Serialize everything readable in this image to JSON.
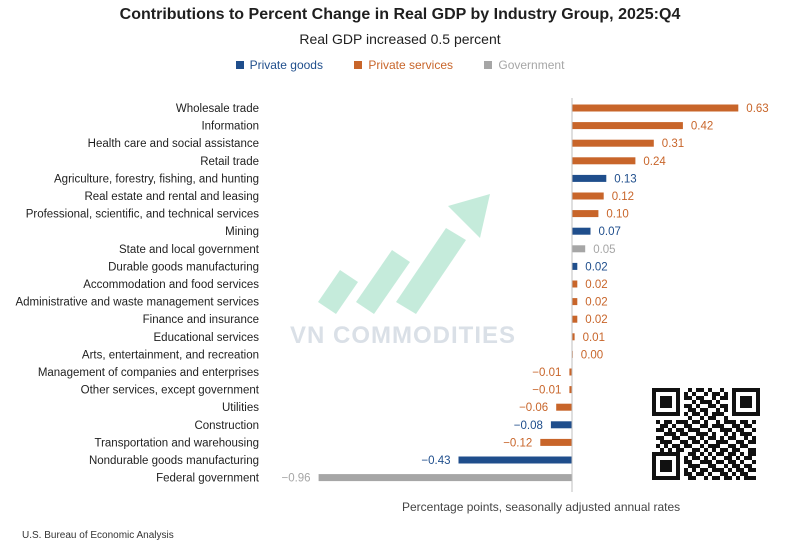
{
  "header": {
    "title": "Contributions to Percent Change in Real GDP by Industry Group, 2025:Q4",
    "subtitle": "Real GDP increased 0.5 percent"
  },
  "legend": [
    {
      "label": "Private goods",
      "color": "#1f4e8c"
    },
    {
      "label": "Private services",
      "color": "#c8652a"
    },
    {
      "label": "Government",
      "color": "#a6a6a6"
    }
  ],
  "footer": {
    "note": "Percentage points, seasonally adjusted annual rates",
    "source": "U.S. Bureau of Economic Analysis"
  },
  "watermark": {
    "text": "VN COMMODITIES"
  },
  "chart_data": {
    "type": "bar",
    "orientation": "horizontal",
    "title": "Contributions to Percent Change in Real GDP by Industry Group, 2025:Q4",
    "subtitle": "Real GDP increased 0.5 percent",
    "xlabel": "Percentage points, seasonally adjusted annual rates",
    "xlim": [
      -0.96,
      0.63
    ],
    "grid": false,
    "legend_position": "top",
    "colors": {
      "Private goods": "#1f4e8c",
      "Private services": "#c8652a",
      "Government": "#a6a6a6"
    },
    "categories": [
      "Wholesale trade",
      "Information",
      "Health care and social assistance",
      "Retail trade",
      "Agriculture, forestry, fishing, and hunting",
      "Real estate and rental and leasing",
      "Professional, scientific, and technical services",
      "Mining",
      "State and local government",
      "Durable goods manufacturing",
      "Accommodation and food services",
      "Administrative and waste management services",
      "Finance and insurance",
      "Educational services",
      "Arts, entertainment, and recreation",
      "Management of companies and enterprises",
      "Other services, except government",
      "Utilities",
      "Construction",
      "Transportation and warehousing",
      "Nondurable goods manufacturing",
      "Federal government"
    ],
    "values": [
      0.63,
      0.42,
      0.31,
      0.24,
      0.13,
      0.12,
      0.1,
      0.07,
      0.05,
      0.02,
      0.02,
      0.02,
      0.02,
      0.01,
      0.0,
      -0.01,
      -0.01,
      -0.06,
      -0.08,
      -0.12,
      -0.43,
      -0.96
    ],
    "value_labels": [
      "0.63",
      "0.42",
      "0.31",
      "0.24",
      "0.13",
      "0.12",
      "0.10",
      "0.07",
      "0.05",
      "0.02",
      "0.02",
      "0.02",
      "0.02",
      "0.01",
      "0.00",
      "−0.01",
      "−0.01",
      "−0.06",
      "−0.08",
      "−0.12",
      "−0.43",
      "−0.96"
    ],
    "groups": [
      "Private services",
      "Private services",
      "Private services",
      "Private services",
      "Private goods",
      "Private services",
      "Private services",
      "Private goods",
      "Government",
      "Private goods",
      "Private services",
      "Private services",
      "Private services",
      "Private services",
      "Private services",
      "Private services",
      "Private services",
      "Private services",
      "Private goods",
      "Private services",
      "Private goods",
      "Government"
    ]
  }
}
